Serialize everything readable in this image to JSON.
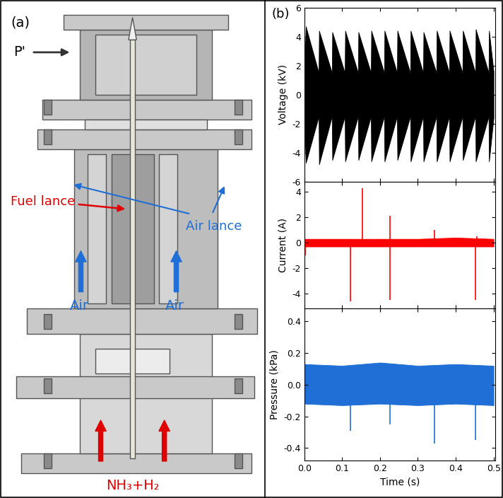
{
  "panel_a": {
    "label": "(a)",
    "labels": {
      "pressure_probe": "P'",
      "fuel_lance": "Fuel lance",
      "air_lance": "Air lance",
      "air_inlets": [
        "Air",
        "Air"
      ],
      "fuel_inlet": "NH₃+H₂"
    }
  },
  "panel_b": {
    "label": "(b)"
  },
  "chart_data": [
    {
      "type": "band",
      "ylabel": "Voltage (kV)",
      "color": "#000000",
      "x": [
        0.0,
        0.004,
        0.038,
        0.039,
        0.073,
        0.074,
        0.107,
        0.108,
        0.142,
        0.143,
        0.176,
        0.177,
        0.211,
        0.212,
        0.245,
        0.246,
        0.28,
        0.281,
        0.314,
        0.315,
        0.349,
        0.35,
        0.383,
        0.384,
        0.418,
        0.419,
        0.452,
        0.453,
        0.487,
        0.488,
        0.5
      ],
      "upper": [
        1.5,
        4.7,
        1.5,
        4.4,
        1.5,
        4.3,
        1.5,
        4.4,
        1.5,
        4.3,
        1.5,
        4.4,
        1.5,
        4.4,
        1.5,
        4.4,
        1.5,
        4.4,
        1.5,
        4.3,
        1.5,
        4.4,
        1.5,
        4.4,
        1.5,
        4.4,
        1.5,
        4.5,
        1.5,
        4.4,
        1.6
      ],
      "lower": [
        -1.5,
        -4.7,
        -1.5,
        -4.8,
        -1.5,
        -4.5,
        -1.5,
        -4.6,
        -1.5,
        -4.5,
        -1.5,
        -4.6,
        -1.5,
        -4.6,
        -1.5,
        -4.5,
        -1.5,
        -4.6,
        -1.5,
        -4.6,
        -1.5,
        -4.6,
        -1.5,
        -4.6,
        -1.5,
        -4.5,
        -1.5,
        -4.6,
        -1.5,
        -4.6,
        -1.6
      ],
      "xlim": [
        0.0,
        0.505
      ],
      "xticks": [
        0.0,
        0.1,
        0.2,
        0.3,
        0.4,
        0.5
      ],
      "ylim": [
        -6,
        6
      ],
      "yticks": [
        -6,
        -4,
        -2,
        0,
        2,
        4,
        6
      ],
      "tick_labels": "y"
    },
    {
      "type": "band",
      "ylabel": "Current (A)",
      "color": "#ff0000",
      "x": [
        0.0,
        0.1,
        0.2,
        0.3,
        0.4,
        0.5
      ],
      "upper": [
        0.3,
        0.3,
        0.3,
        0.3,
        0.4,
        0.3
      ],
      "lower": [
        -0.3,
        -0.3,
        -0.3,
        -0.3,
        -0.3,
        -0.3
      ],
      "spikes": {
        "x": [
          0.002,
          0.122,
          0.153,
          0.226,
          0.227,
          0.343,
          0.452,
          0.455
        ],
        "values": [
          -1.0,
          -4.6,
          4.3,
          -4.5,
          2.1,
          1.0,
          -4.5,
          0.5
        ]
      },
      "xlim": [
        0.0,
        0.505
      ],
      "xticks": [
        0.0,
        0.1,
        0.2,
        0.3,
        0.4,
        0.5
      ],
      "ylim": [
        -5.2,
        4.8
      ],
      "yticks": [
        -4,
        -2,
        0,
        2,
        4
      ],
      "tick_labels": "y"
    },
    {
      "type": "band",
      "ylabel": "Pressure (kPa)",
      "xlabel": "Time (s)",
      "color": "#1f6fd6",
      "x": [
        0.0,
        0.1,
        0.2,
        0.3,
        0.4,
        0.5
      ],
      "upper": [
        0.13,
        0.12,
        0.14,
        0.12,
        0.13,
        0.12
      ],
      "lower": [
        -0.12,
        -0.13,
        -0.12,
        -0.13,
        -0.12,
        -0.13
      ],
      "spikes": {
        "x": [
          0.122,
          0.226,
          0.343,
          0.452
        ],
        "values": [
          -0.29,
          -0.25,
          -0.37,
          -0.35
        ]
      },
      "xlim": [
        0.0,
        0.505
      ],
      "xticks": [
        0.0,
        0.1,
        0.2,
        0.3,
        0.4,
        0.5
      ],
      "ylim": [
        -0.48,
        0.48
      ],
      "yticks": [
        -0.4,
        -0.2,
        0.0,
        0.2,
        0.4
      ],
      "tick_labels": true
    }
  ]
}
